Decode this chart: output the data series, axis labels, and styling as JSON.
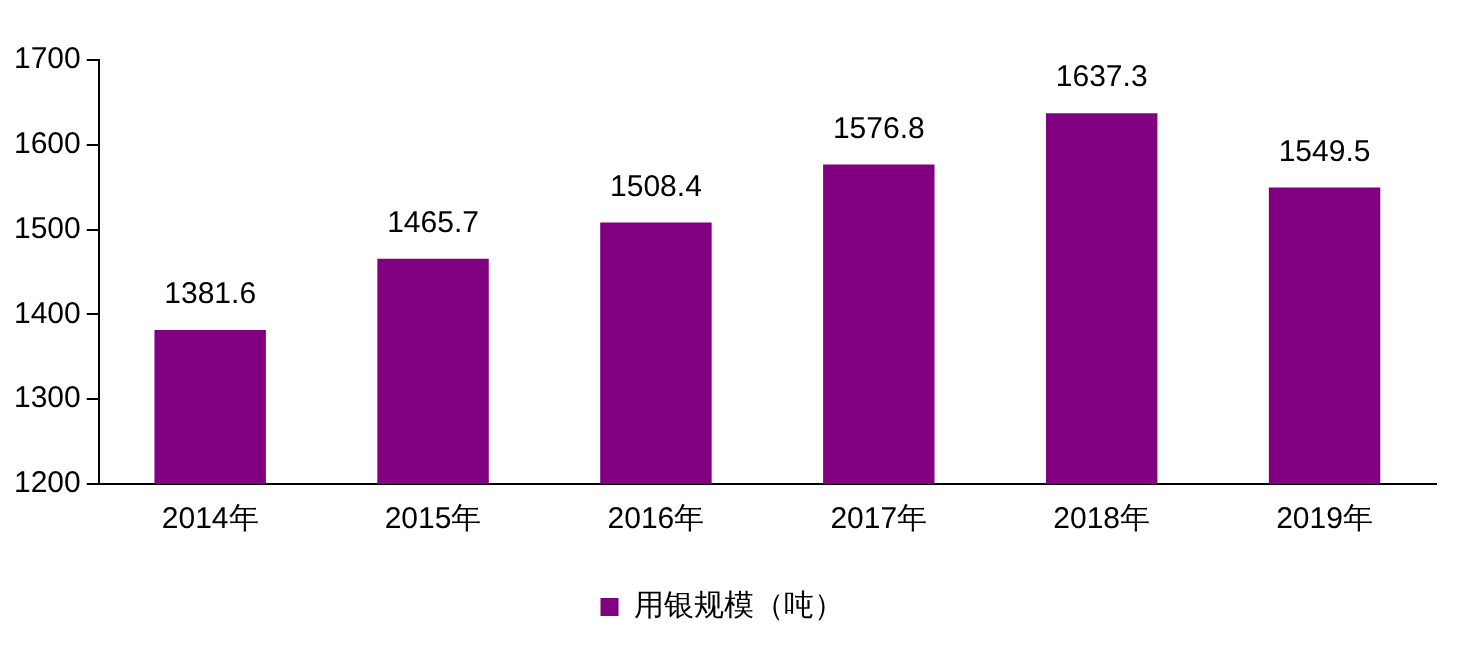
{
  "chart_data": {
    "type": "bar",
    "categories": [
      "2014年",
      "2015年",
      "2016年",
      "2017年",
      "2018年",
      "2019年"
    ],
    "series": [
      {
        "name": "用银规模（吨）",
        "color": "#800080",
        "values": [
          1381.6,
          1465.7,
          1508.4,
          1576.8,
          1637.3,
          1549.5
        ]
      }
    ],
    "ylim": [
      1200,
      1700
    ],
    "yticks": [
      1200,
      1300,
      1400,
      1500,
      1600,
      1700
    ],
    "grid": false,
    "legend": "bottom",
    "data_labels": true
  }
}
